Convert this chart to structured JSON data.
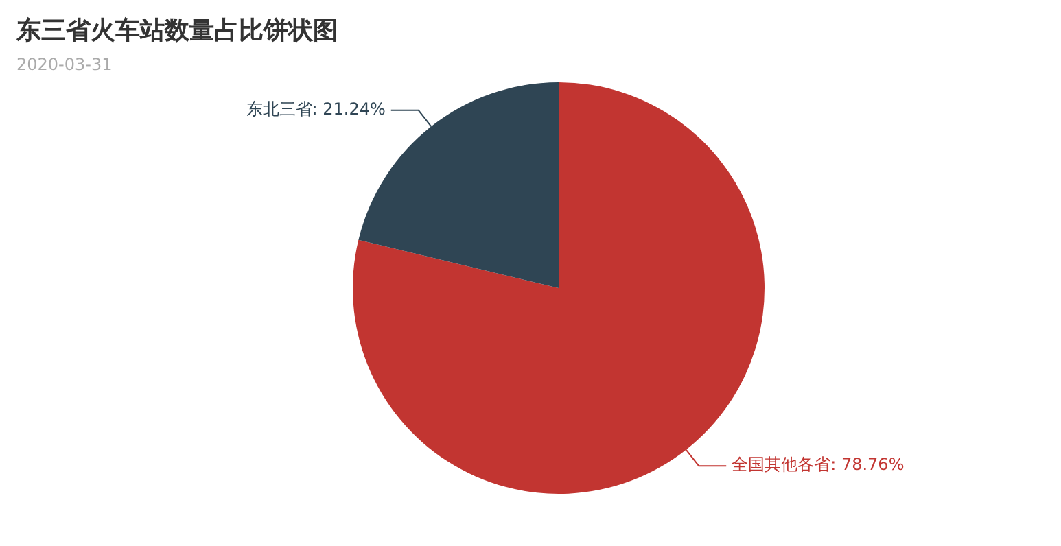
{
  "chart_data": {
    "type": "pie",
    "title": "东三省火车站数量占比饼状图",
    "subtitle": "2020-03-31",
    "categories": [
      "全国其他各省",
      "东北三省"
    ],
    "values": [
      78.76,
      21.24
    ],
    "colors": [
      "#c23531",
      "#2f4554"
    ],
    "value_labels": [
      "78.76%",
      "21.24%"
    ],
    "legend": false
  }
}
